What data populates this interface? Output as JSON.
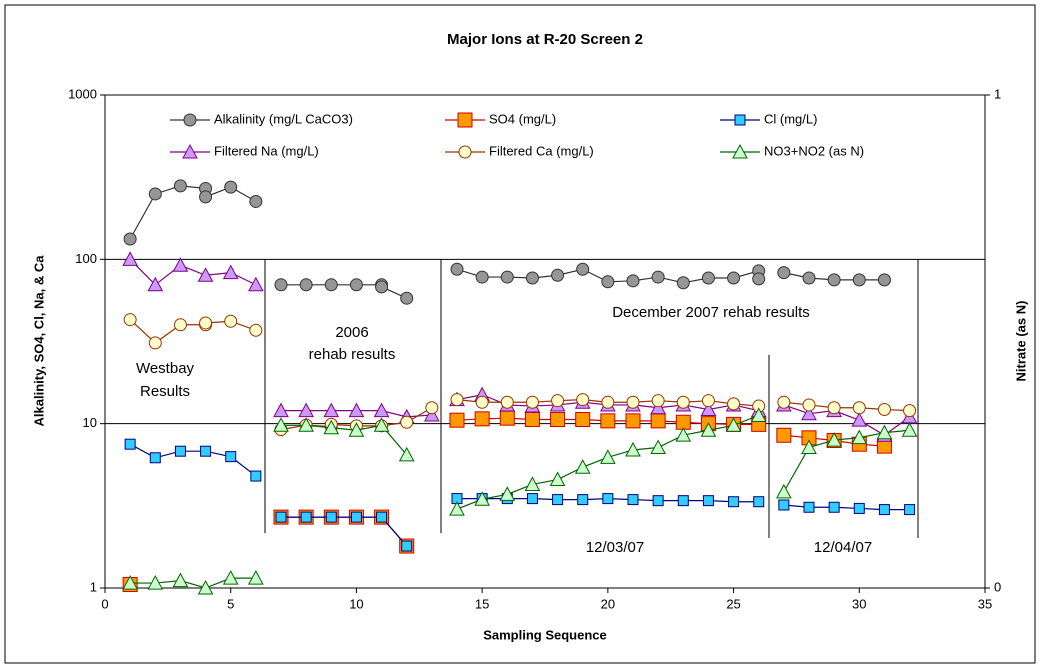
{
  "chart_data": {
    "type": "line",
    "title": "Major Ions at R-20 Screen 2",
    "x_label": "Sampling Sequence",
    "y_label": "Alkalinity, SO4, Cl, Na, & Ca",
    "y2_label": "Nitrate (as N)",
    "xlim": [
      0,
      35
    ],
    "xticks": [
      0,
      5,
      10,
      15,
      20,
      25,
      30,
      35
    ],
    "ylim": [
      1,
      1000
    ],
    "yticks": [
      1,
      10,
      100,
      1000
    ],
    "log_y": true,
    "grid": true,
    "y2lim": [
      0,
      1
    ],
    "y2ticks": [
      0,
      1
    ],
    "annotations": [
      "Westbay",
      "Results",
      "2006",
      "rehab results",
      "December 2007 rehab results",
      "12/03/07",
      "12/04/07"
    ],
    "series": [
      {
        "name": "Alkalinity (mg/L CaCO3)",
        "color": "#969696",
        "stroke": "#333333",
        "marker": "circle",
        "x": [
          1,
          2,
          3,
          4,
          4,
          5,
          6,
          null,
          7,
          8,
          9,
          10,
          11,
          11,
          12,
          null,
          14,
          15,
          16,
          17,
          18,
          19,
          20,
          21,
          22,
          23,
          24,
          25,
          26,
          26,
          null,
          27,
          28,
          29,
          30,
          31
        ],
        "values": [
          133,
          250,
          280,
          270,
          240,
          275,
          225,
          null,
          70,
          70,
          70,
          70,
          70,
          68,
          58,
          null,
          87,
          78,
          78,
          77,
          80,
          87,
          73,
          74,
          78,
          72,
          77,
          77,
          85,
          76,
          null,
          83,
          77,
          75,
          75,
          75
        ]
      },
      {
        "name": "SO4 (mg/L)",
        "color": "#ff9900",
        "stroke": "#cc0000",
        "marker": "square",
        "x": [
          1,
          null,
          7,
          8,
          9,
          10,
          11,
          12,
          null,
          14,
          15,
          16,
          17,
          18,
          19,
          20,
          21,
          22,
          23,
          24,
          25,
          26,
          null,
          27,
          28,
          29,
          30,
          31
        ],
        "values": [
          1.05,
          null,
          2.7,
          2.7,
          2.7,
          2.7,
          2.7,
          1.8,
          null,
          10.5,
          10.7,
          10.8,
          10.6,
          10.6,
          10.6,
          10.4,
          10.4,
          10.4,
          10.2,
          10,
          9.9,
          9.9,
          null,
          8.5,
          8.2,
          7.9,
          7.5,
          7.3
        ]
      },
      {
        "name": "Cl  (mg/L)",
        "color": "#33ccff",
        "stroke": "#000080",
        "marker": "square-small",
        "x": [
          1,
          2,
          3,
          4,
          5,
          6,
          null,
          7,
          8,
          9,
          10,
          11,
          12,
          null,
          14,
          15,
          16,
          17,
          18,
          19,
          20,
          21,
          22,
          23,
          24,
          25,
          26,
          null,
          27,
          28,
          29,
          30,
          31,
          32
        ],
        "values": [
          7.5,
          6.2,
          6.8,
          6.8,
          6.3,
          4.8,
          null,
          2.7,
          2.7,
          2.7,
          2.7,
          2.7,
          1.8,
          null,
          3.5,
          3.5,
          3.5,
          3.5,
          3.45,
          3.45,
          3.5,
          3.45,
          3.4,
          3.4,
          3.4,
          3.35,
          3.35,
          null,
          3.2,
          3.1,
          3.1,
          3.05,
          3,
          3
        ]
      },
      {
        "name": "Filtered Na (mg/L)",
        "color": "#cc99ff",
        "stroke": "#800080",
        "marker": "triangle",
        "x": [
          1,
          2,
          3,
          4,
          5,
          6,
          null,
          7,
          8,
          9,
          10,
          11,
          12,
          13,
          null,
          14,
          15,
          16,
          17,
          18,
          19,
          20,
          21,
          22,
          23,
          24,
          25,
          26,
          null,
          27,
          28,
          29,
          30,
          31,
          32
        ],
        "values": [
          100,
          70,
          92,
          80,
          83,
          70,
          null,
          12,
          12,
          12,
          12,
          12,
          11,
          11.3,
          null,
          14,
          15,
          13,
          12.8,
          13,
          13.5,
          13,
          13,
          12.5,
          13,
          12.2,
          13,
          12,
          null,
          13,
          11.5,
          12,
          10.5,
          8.5,
          11
        ]
      },
      {
        "name": "Filtered Ca (mg/L)",
        "color": "#ffffcc",
        "stroke": "#993300",
        "marker": "circle",
        "x": [
          1,
          2,
          3,
          4,
          4,
          5,
          6,
          null,
          7,
          8,
          9,
          9,
          10,
          11,
          12,
          13,
          null,
          14,
          15,
          16,
          17,
          18,
          19,
          20,
          21,
          22,
          23,
          24,
          25,
          26,
          null,
          27,
          28,
          29,
          30,
          31,
          32
        ],
        "values": [
          43,
          31,
          40,
          40,
          41,
          42,
          37,
          null,
          9.2,
          9.8,
          9.6,
          9.9,
          9.7,
          9.7,
          10.2,
          12.5,
          null,
          14,
          13.5,
          13.5,
          13.5,
          13.8,
          14,
          13.5,
          13.5,
          13.8,
          13.5,
          13.8,
          13.2,
          12.8,
          null,
          13.5,
          13,
          12.5,
          12.5,
          12.2,
          12
        ]
      },
      {
        "name": "NO3+NO2 (as N)",
        "color": "#ccffcc",
        "stroke": "#006600",
        "marker": "triangle",
        "axis": "y2",
        "x": [
          1,
          2,
          3,
          4,
          5,
          6,
          null,
          7,
          8,
          9,
          10,
          11,
          12,
          null,
          14,
          15,
          16,
          17,
          18,
          19,
          20,
          21,
          22,
          23,
          24,
          25,
          26,
          null,
          27,
          28,
          29,
          30,
          31,
          32
        ],
        "values": [
          0.01,
          0.01,
          0.015,
          0,
          0.02,
          0.02,
          null,
          0.33,
          0.33,
          0.325,
          0.32,
          0.33,
          0.27,
          null,
          0.16,
          0.18,
          0.19,
          0.21,
          0.22,
          0.245,
          0.265,
          0.28,
          0.285,
          0.31,
          0.32,
          0.33,
          0.35,
          null,
          0.195,
          0.285,
          0.3,
          0.305,
          0.315,
          0.32
        ]
      }
    ]
  }
}
